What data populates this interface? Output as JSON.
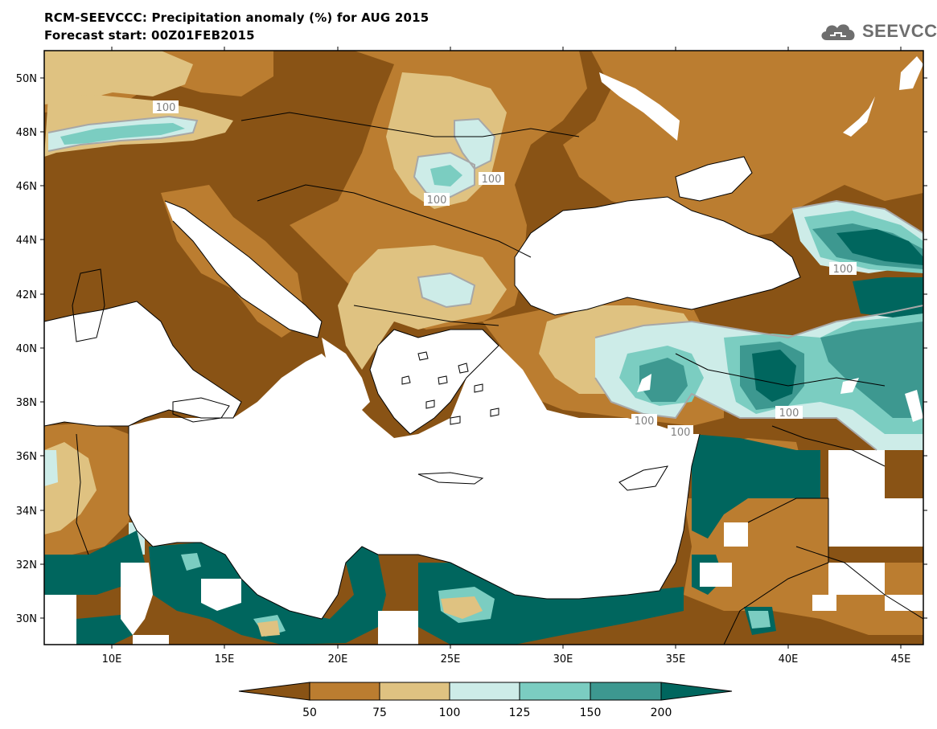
{
  "header": {
    "title": "RCM-SEEVCCC: Precipitation anomaly (%) for AUG 2015",
    "subtitle": "Forecast start: 00Z01FEB2015"
  },
  "logo": {
    "text": "SEEVCCC",
    "icon": "cloud-icon"
  },
  "map": {
    "lat_labels": [
      "50N",
      "48N",
      "46N",
      "44N",
      "42N",
      "40N",
      "38N",
      "36N",
      "34N",
      "32N",
      "30N"
    ],
    "lon_labels": [
      "10E",
      "15E",
      "20E",
      "25E",
      "30E",
      "35E",
      "40E",
      "45E"
    ],
    "contour_labels": [
      "100",
      "100",
      "100",
      "100",
      "100",
      "100",
      "100"
    ]
  },
  "legend": {
    "colors": [
      "#895315",
      "#bb7d30",
      "#dfc281",
      "#cdece8",
      "#7bcdc1",
      "#3d9890",
      "#00665e"
    ],
    "labels": [
      "50",
      "75",
      "100",
      "125",
      "150",
      "200"
    ]
  }
}
